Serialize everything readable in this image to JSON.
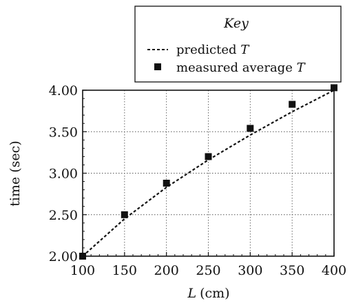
{
  "chart_data": {
    "type": "line",
    "title": "",
    "xlabel": "L",
    "xlabel_unit": "(cm)",
    "ylabel": "time (sec)",
    "xlim": [
      100,
      400
    ],
    "ylim": [
      2.0,
      4.0
    ],
    "grid": true,
    "x_ticks": [
      "100",
      "150",
      "200",
      "250",
      "300",
      "350",
      "400"
    ],
    "y_ticks": [
      "2.00",
      "2.50",
      "3.00",
      "3.50",
      "4.00"
    ],
    "legend": {
      "title": "Key",
      "placement": "top-right",
      "items": [
        {
          "text": "predicted ",
          "var": "T",
          "marker": "dashed-line"
        },
        {
          "text": "measured average ",
          "var": "T",
          "marker": "square"
        }
      ]
    },
    "series": [
      {
        "name": "predicted T",
        "style": "dashed",
        "color": "#111111",
        "x": [
          100,
          150,
          200,
          250,
          300,
          350,
          400
        ],
        "y": [
          2.0,
          2.45,
          2.83,
          3.16,
          3.46,
          3.74,
          4.0
        ]
      },
      {
        "name": "measured average T",
        "style": "square-markers",
        "color": "#111111",
        "x": [
          100,
          150,
          200,
          250,
          300,
          350,
          400
        ],
        "y": [
          2.0,
          2.5,
          2.88,
          3.2,
          3.54,
          3.83,
          4.03
        ]
      }
    ]
  }
}
